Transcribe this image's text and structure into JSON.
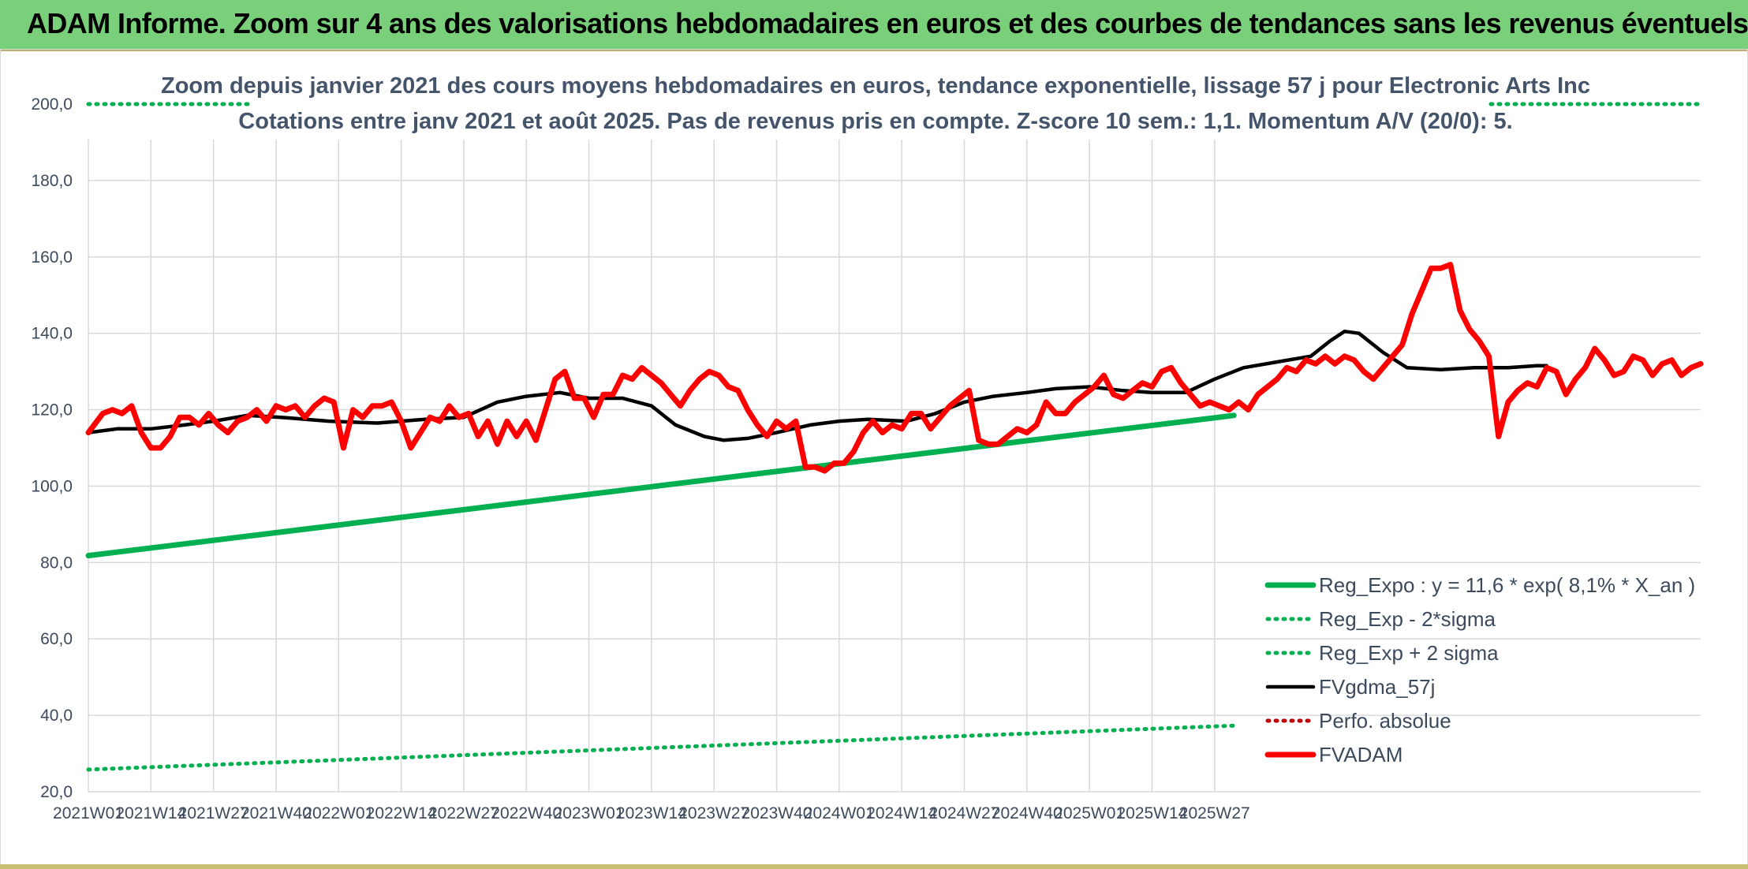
{
  "banner": {
    "title": "ADAM Informe. Zoom sur 4 ans des valorisations hebdomadaires en euros et des courbes de tendances sans les revenus éventuels"
  },
  "colors": {
    "banner": "#7ad07a",
    "trend_green": "#00b050",
    "fvadam_red": "#ff0000",
    "gdma_black": "#000000",
    "perf_red": "#c00000"
  },
  "chart_data": {
    "type": "line",
    "title_line1": "Zoom depuis janvier 2021 des cours moyens hebdomadaires en euros, tendance exponentielle, lissage 57 j pour Electronic Arts Inc",
    "title_line2": "Cotations entre janv 2021 et août 2025. Pas de revenus pris en compte. Z-score 10 sem.: 1,1. Momentum A/V (20/0): 5.",
    "ylim": [
      20,
      200
    ],
    "yticks": [
      "20,0",
      "40,0",
      "60,0",
      "80,0",
      "100,0",
      "120,0",
      "140,0",
      "160,0",
      "180,0",
      "200,0"
    ],
    "xlabels": [
      "2021W01",
      "2021W14",
      "2021W27",
      "2021W40",
      "2022W01",
      "2022W14",
      "2022W27",
      "2022W40",
      "2023W01",
      "2023W14",
      "2023W27",
      "2023W40",
      "2024W01",
      "2024W14",
      "2024W27",
      "2024W40",
      "2025W01",
      "2025W14",
      "2025W27"
    ],
    "x_count": 239,
    "grid": true,
    "legend_position": "bottom-right",
    "series": [
      {
        "name": "Reg_Expo : y = 11,6 * exp( 8,1% *  X_an )",
        "style": "solid-thick",
        "color": "#00b050",
        "points": [
          [
            0,
            81.8
          ],
          [
            238,
            118.5
          ]
        ]
      },
      {
        "name": "Reg_Exp - 2*sigma",
        "style": "dotted",
        "color": "#00b050",
        "points": [
          [
            0,
            25.8
          ],
          [
            238,
            37.3
          ]
        ]
      },
      {
        "name": "Reg_Exp + 2 sigma",
        "style": "dotted",
        "color": "#00b050",
        "points": [
          [
            0,
            200
          ],
          [
            238,
            200
          ]
        ]
      },
      {
        "name": "FVgdma_57j",
        "style": "solid",
        "color": "#000000",
        "points": [
          [
            0,
            114
          ],
          [
            6,
            115
          ],
          [
            13,
            115
          ],
          [
            20,
            116
          ],
          [
            26,
            117
          ],
          [
            33,
            118.5
          ],
          [
            40,
            118
          ],
          [
            50,
            117
          ],
          [
            60,
            116.5
          ],
          [
            70,
            117.5
          ],
          [
            78,
            118
          ],
          [
            85,
            122
          ],
          [
            91,
            123.5
          ],
          [
            98,
            124.5
          ],
          [
            104,
            123
          ],
          [
            111,
            123
          ],
          [
            117,
            121
          ],
          [
            122,
            116
          ],
          [
            128,
            113
          ],
          [
            132,
            112
          ],
          [
            137,
            112.5
          ],
          [
            143,
            114
          ],
          [
            150,
            116
          ],
          [
            156,
            117
          ],
          [
            162,
            117.5
          ],
          [
            170,
            117
          ],
          [
            176,
            119
          ],
          [
            182,
            122
          ],
          [
            188,
            123.5
          ],
          [
            195,
            124.5
          ],
          [
            201,
            125.5
          ],
          [
            208,
            126
          ],
          [
            215,
            125
          ],
          [
            221,
            124.5
          ],
          [
            228,
            124.5
          ],
          [
            234,
            128
          ],
          [
            240,
            131
          ],
          [
            247,
            132.5
          ],
          [
            254,
            134
          ],
          [
            258,
            138
          ],
          [
            261,
            140.5
          ],
          [
            264,
            140
          ],
          [
            269,
            135
          ],
          [
            274,
            131
          ],
          [
            281,
            130.5
          ],
          [
            288,
            131
          ],
          [
            295,
            131
          ],
          [
            301,
            131.5
          ],
          [
            303,
            131.5
          ]
        ]
      },
      {
        "name": "Perfo. absolue",
        "style": "dotted",
        "color": "#c00000",
        "points": []
      },
      {
        "name": "FVADAM",
        "style": "solid-thick",
        "color": "#ff0000",
        "points": [
          [
            0,
            114
          ],
          [
            3,
            119
          ],
          [
            5,
            120
          ],
          [
            7,
            119
          ],
          [
            9,
            121
          ],
          [
            11,
            114
          ],
          [
            13,
            110
          ],
          [
            15,
            110
          ],
          [
            17,
            113
          ],
          [
            19,
            118
          ],
          [
            21,
            118
          ],
          [
            23,
            116
          ],
          [
            25,
            119
          ],
          [
            27,
            116
          ],
          [
            29,
            114
          ],
          [
            31,
            117
          ],
          [
            33,
            118
          ],
          [
            35,
            120
          ],
          [
            37,
            117
          ],
          [
            39,
            121
          ],
          [
            41,
            120
          ],
          [
            43,
            121
          ],
          [
            45,
            118
          ],
          [
            47,
            121
          ],
          [
            49,
            123
          ],
          [
            51,
            122
          ],
          [
            53,
            110
          ],
          [
            55,
            120
          ],
          [
            57,
            118
          ],
          [
            59,
            121
          ],
          [
            61,
            121
          ],
          [
            63,
            122
          ],
          [
            65,
            117
          ],
          [
            67,
            110
          ],
          [
            69,
            114
          ],
          [
            71,
            118
          ],
          [
            73,
            117
          ],
          [
            75,
            121
          ],
          [
            77,
            118
          ],
          [
            79,
            119
          ],
          [
            81,
            113
          ],
          [
            83,
            117
          ],
          [
            85,
            111
          ],
          [
            87,
            117
          ],
          [
            89,
            113
          ],
          [
            91,
            117
          ],
          [
            93,
            112
          ],
          [
            95,
            120
          ],
          [
            97,
            128
          ],
          [
            99,
            130
          ],
          [
            101,
            123
          ],
          [
            103,
            123
          ],
          [
            105,
            118
          ],
          [
            107,
            124
          ],
          [
            109,
            124
          ],
          [
            111,
            129
          ],
          [
            113,
            128
          ],
          [
            115,
            131
          ],
          [
            117,
            129
          ],
          [
            119,
            127
          ],
          [
            121,
            124
          ],
          [
            123,
            121
          ],
          [
            125,
            125
          ],
          [
            127,
            128
          ],
          [
            129,
            130
          ],
          [
            131,
            129
          ],
          [
            133,
            126
          ],
          [
            135,
            125
          ],
          [
            137,
            120
          ],
          [
            139,
            116
          ],
          [
            141,
            113
          ],
          [
            143,
            117
          ],
          [
            145,
            115
          ],
          [
            147,
            117
          ],
          [
            149,
            105
          ],
          [
            151,
            105
          ],
          [
            153,
            104
          ],
          [
            155,
            106
          ],
          [
            157,
            106
          ],
          [
            159,
            109
          ],
          [
            161,
            114
          ],
          [
            163,
            117
          ],
          [
            165,
            114
          ],
          [
            167,
            116
          ],
          [
            169,
            115
          ],
          [
            171,
            119
          ],
          [
            173,
            119
          ],
          [
            175,
            115
          ],
          [
            177,
            118
          ],
          [
            179,
            121
          ],
          [
            181,
            123
          ],
          [
            183,
            125
          ],
          [
            185,
            112
          ],
          [
            187,
            111
          ],
          [
            189,
            111
          ],
          [
            191,
            113
          ],
          [
            193,
            115
          ],
          [
            195,
            114
          ],
          [
            197,
            116
          ],
          [
            199,
            122
          ],
          [
            201,
            119
          ],
          [
            203,
            119
          ],
          [
            205,
            122
          ],
          [
            207,
            124
          ],
          [
            209,
            126
          ],
          [
            211,
            129
          ],
          [
            213,
            124
          ],
          [
            215,
            123
          ],
          [
            217,
            125
          ],
          [
            219,
            127
          ],
          [
            221,
            126
          ],
          [
            223,
            130
          ],
          [
            225,
            131
          ],
          [
            227,
            127
          ],
          [
            229,
            124
          ],
          [
            231,
            121
          ],
          [
            233,
            122
          ],
          [
            235,
            121
          ],
          [
            237,
            120
          ],
          [
            239,
            122
          ],
          [
            241,
            120
          ],
          [
            243,
            124
          ],
          [
            245,
            126
          ],
          [
            247,
            128
          ],
          [
            249,
            131
          ],
          [
            251,
            130
          ],
          [
            253,
            133
          ],
          [
            255,
            132
          ],
          [
            257,
            134
          ],
          [
            259,
            132
          ],
          [
            261,
            134
          ],
          [
            263,
            133
          ],
          [
            265,
            130
          ],
          [
            267,
            128
          ],
          [
            269,
            131
          ],
          [
            271,
            134
          ],
          [
            273,
            137
          ],
          [
            275,
            145
          ],
          [
            277,
            151
          ],
          [
            279,
            157
          ],
          [
            281,
            157
          ],
          [
            283,
            158
          ],
          [
            285,
            146
          ],
          [
            287,
            141
          ],
          [
            289,
            138
          ],
          [
            291,
            134
          ],
          [
            293,
            113
          ],
          [
            295,
            122
          ],
          [
            297,
            125
          ],
          [
            299,
            127
          ],
          [
            301,
            126
          ],
          [
            303,
            131
          ],
          [
            305,
            130
          ],
          [
            307,
            124
          ],
          [
            309,
            128
          ],
          [
            311,
            131
          ],
          [
            313,
            136
          ],
          [
            315,
            133
          ],
          [
            317,
            129
          ],
          [
            319,
            130
          ],
          [
            321,
            134
          ],
          [
            323,
            133
          ],
          [
            325,
            129
          ],
          [
            327,
            132
          ],
          [
            329,
            133
          ],
          [
            331,
            129
          ],
          [
            333,
            131
          ],
          [
            335,
            132
          ]
        ]
      }
    ]
  }
}
